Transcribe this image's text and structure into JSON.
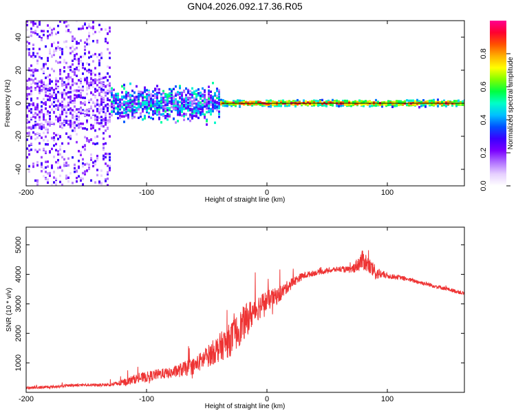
{
  "figure": {
    "title": "GN04.2026.092.17.36.R05"
  },
  "chart_data": [
    {
      "type": "heatmap",
      "title": "",
      "xlabel": "Height of straight line (km)",
      "ylabel": "Frequency (Hz)",
      "xlim": [
        -200,
        164
      ],
      "ylim": [
        -50,
        50
      ],
      "x_ticks": [
        -200,
        -100,
        0,
        100
      ],
      "y_ticks": [
        -40,
        -20,
        0,
        20,
        40
      ],
      "colorbar": {
        "label": "Normalized spectral amplitude",
        "range": [
          0.0,
          1.0
        ],
        "ticks": [
          0.0,
          0.2,
          0.4,
          0.6,
          0.8
        ],
        "colors": [
          "#ffffff",
          "#e6d0ff",
          "#b070ff",
          "#7a00ff",
          "#3a00ff",
          "#0050ff",
          "#00c0ff",
          "#00ffc8",
          "#00ff40",
          "#80ff00",
          "#ffff00",
          "#ffb000",
          "#ff5000",
          "#ff0030",
          "#ff0090"
        ]
      },
      "description_regions": [
        {
          "x_range": [
            -200,
            -130
          ],
          "freq_spread_hz": 50,
          "amplitude": [
            0.05,
            0.3
          ]
        },
        {
          "x_range": [
            -130,
            -40
          ],
          "freq_spread_hz": 10,
          "amplitude": [
            0.1,
            0.55
          ]
        },
        {
          "x_range": [
            -40,
            164
          ],
          "freq_spread_hz": 2,
          "amplitude": [
            0.6,
            0.95
          ]
        }
      ]
    },
    {
      "type": "line",
      "title": "",
      "xlabel": "Height of straight line (km)",
      "ylabel": "SNR (10 * v/v)",
      "xlim": [
        -200,
        164
      ],
      "ylim": [
        0,
        5600
      ],
      "x_ticks": [
        -200,
        -100,
        0,
        100
      ],
      "y_ticks": [
        1000,
        2000,
        3000,
        4000,
        5000
      ],
      "series": [
        {
          "name": "SNR",
          "color": "#ee3333",
          "x": [
            -200,
            -180,
            -160,
            -140,
            -130,
            -120,
            -110,
            -100,
            -90,
            -80,
            -70,
            -60,
            -50,
            -40,
            -30,
            -20,
            -10,
            0,
            10,
            20,
            30,
            40,
            50,
            60,
            70,
            80,
            90,
            100,
            110,
            120,
            130,
            140,
            150,
            164
          ],
          "values": [
            150,
            180,
            250,
            250,
            260,
            320,
            450,
            520,
            620,
            650,
            780,
            900,
            1200,
            1500,
            1800,
            2300,
            2800,
            3100,
            3300,
            3700,
            3950,
            4050,
            4120,
            4180,
            4150,
            4500,
            4050,
            3950,
            3900,
            3800,
            3700,
            3600,
            3500,
            3350
          ],
          "noise_amplitude": [
            80,
            80,
            80,
            80,
            90,
            200,
            260,
            300,
            300,
            300,
            420,
            480,
            600,
            800,
            950,
            1000,
            800,
            600,
            450,
            300,
            200,
            150,
            150,
            150,
            200,
            600,
            400,
            150,
            120,
            120,
            120,
            120,
            110,
            110
          ]
        }
      ]
    }
  ]
}
